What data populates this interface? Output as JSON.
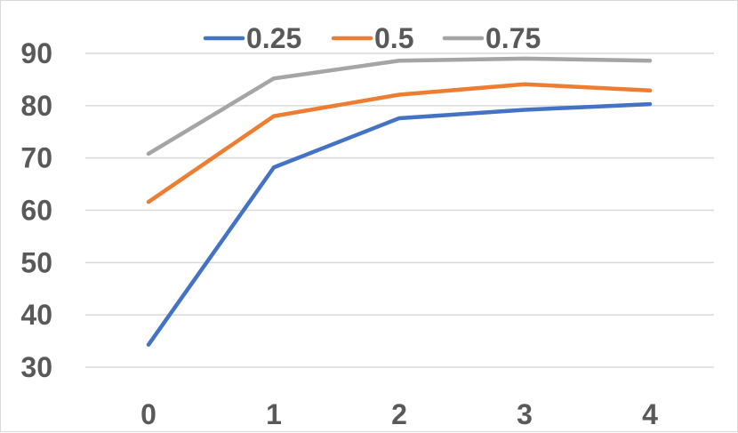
{
  "chart_data": {
    "type": "line",
    "x": [
      0,
      1,
      2,
      3,
      4
    ],
    "categories": [
      "0",
      "1",
      "2",
      "3",
      "4"
    ],
    "ylim": [
      30,
      90
    ],
    "yticks": [
      30,
      40,
      50,
      60,
      70,
      80,
      90
    ],
    "grid": true,
    "legend_position": "top",
    "title": "",
    "xlabel": "",
    "ylabel": "",
    "series": [
      {
        "name": "0.25",
        "color": "#4472C4",
        "values": [
          34.3,
          68.2,
          77.6,
          79.2,
          80.3
        ]
      },
      {
        "name": "0.5",
        "color": "#ED7D31",
        "values": [
          61.6,
          78.0,
          82.1,
          84.1,
          82.9
        ]
      },
      {
        "name": "0.75",
        "color": "#A5A5A5",
        "values": [
          70.8,
          85.2,
          88.6,
          89.0,
          88.6
        ]
      }
    ]
  }
}
